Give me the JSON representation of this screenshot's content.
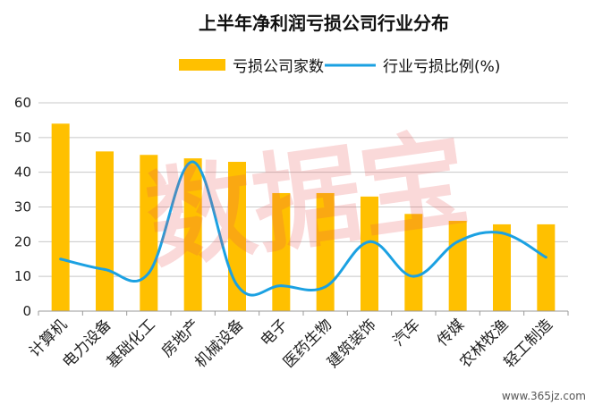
{
  "chart_data": {
    "type": "bar",
    "title": "上半年净利润亏损公司行业分布",
    "categories": [
      "计算机",
      "电力设备",
      "基础化工",
      "房地产",
      "机械设备",
      "电子",
      "医药生物",
      "建筑装饰",
      "汽车",
      "传媒",
      "农林牧渔",
      "轻工制造"
    ],
    "series": [
      {
        "name": "亏损公司家数",
        "type": "bar",
        "color": "#FFC000",
        "values": [
          54,
          46,
          45,
          44,
          43,
          34,
          34,
          33,
          28,
          26,
          25,
          25
        ]
      },
      {
        "name": "行业亏损比例(%)",
        "type": "line",
        "color": "#1BA1E2",
        "values": [
          15,
          12,
          11,
          43,
          7.5,
          7.3,
          7,
          20,
          10,
          20,
          22.5,
          15.5
        ]
      }
    ],
    "ylim": [
      0,
      60
    ],
    "yticks": [
      0,
      10,
      20,
      30,
      40,
      50,
      60
    ],
    "grid": true,
    "legend_position": "top"
  },
  "watermark": "数据宝",
  "footer": "www.365jz.com"
}
